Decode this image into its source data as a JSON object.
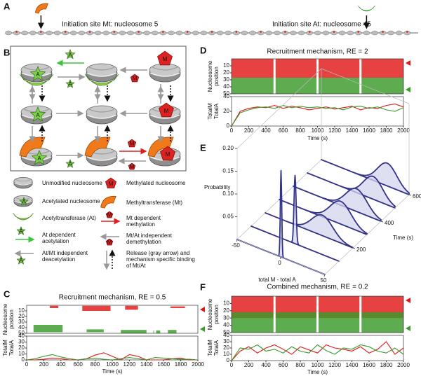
{
  "diagram_a": {
    "panel": "A",
    "site_mt": "Initiation site Mt: nucleosome 5",
    "site_at": "Initiation site At: nucleosome 45"
  },
  "diagram_b": {
    "panel": "B",
    "acetyl_mark": "A",
    "methyl_mark": "M",
    "legend": [
      [
        "Unmodified nucleosome"
      ],
      [
        "Acetylated nucleosome"
      ],
      [
        "Acetyltransferase (At)"
      ],
      [
        "At dependent",
        "acetylation"
      ],
      [
        "At/Mt independent",
        "deacetylation"
      ],
      [
        "Methylated nucleosome"
      ],
      [
        "Methyltransferase (Mt)"
      ],
      [
        "Mt dependent",
        "methylation"
      ],
      [
        "Mt/At independent",
        "demethylation"
      ],
      [
        "Release (gray arrow) and",
        "mechanism specific binding",
        "of Mt/At"
      ]
    ]
  },
  "chart_data": [
    {
      "panel": "C",
      "type": "timecourse",
      "title": "Recruitment mechanism, RE = 0.5",
      "x_label": "Time (s)",
      "xlim": [
        0,
        2000
      ],
      "xticks": [
        0,
        200,
        400,
        600,
        800,
        1000,
        1200,
        1400,
        1600,
        1800,
        2000
      ],
      "top": {
        "y_label": [
          "Nucleosome",
          "position"
        ],
        "ylim": [
          50,
          0
        ],
        "yticks": [
          10,
          20,
          30,
          40,
          50
        ],
        "patches": [
          {
            "color": "#e01818",
            "x": [
              270,
              370
            ],
            "y": [
              1,
              5
            ]
          },
          {
            "color": "#e01818",
            "x": [
              650,
              980
            ],
            "y": [
              1,
              10
            ]
          },
          {
            "color": "#e01818",
            "x": [
              1150,
              1300
            ],
            "y": [
              1,
              8
            ]
          },
          {
            "color": "#e01818",
            "x": [
              1680,
              1850
            ],
            "y": [
              2,
              5
            ]
          },
          {
            "color": "#3a9a2a",
            "x": [
              80,
              420
            ],
            "y": [
              35,
              48
            ]
          },
          {
            "color": "#3a9a2a",
            "x": [
              700,
              900
            ],
            "y": [
              43,
              48
            ]
          },
          {
            "color": "#3a9a2a",
            "x": [
              1100,
              1400
            ],
            "y": [
              44,
              50
            ]
          },
          {
            "color": "#3a9a2a",
            "x": [
              1480,
              1560
            ],
            "y": [
              45,
              50
            ]
          },
          {
            "color": "#3a9a2a",
            "x": [
              1650,
              1750
            ],
            "y": [
              44,
              50
            ]
          }
        ]
      },
      "bottom": {
        "y_label": [
          "TotalM",
          "TotalA"
        ],
        "ylim": [
          0,
          40
        ],
        "yticks": [
          0,
          10,
          20,
          30,
          40
        ],
        "x": [
          0,
          100,
          200,
          300,
          400,
          500,
          600,
          700,
          800,
          900,
          1000,
          1100,
          1200,
          1300,
          1400,
          1500,
          1600,
          1700,
          1800,
          1900,
          2000
        ],
        "series": [
          {
            "color": "#e01818",
            "values": [
              0,
              0,
              1,
              3,
              2,
              0,
              0,
              2,
              8,
              12,
              6,
              0,
              9,
              6,
              0,
              0,
              0,
              2,
              3,
              0,
              0
            ]
          },
          {
            "color": "#3a9a2a",
            "values": [
              0,
              2,
              6,
              9,
              5,
              2,
              0,
              2,
              3,
              1,
              0,
              2,
              4,
              2,
              0,
              4,
              3,
              2,
              1,
              1,
              0
            ]
          }
        ]
      }
    },
    {
      "panel": "D",
      "type": "timecourse",
      "title": "Recruitment mechanism, RE = 2",
      "x_label": "Time (s)",
      "xlim": [
        0,
        2000
      ],
      "xticks": [
        0,
        200,
        400,
        600,
        800,
        1000,
        1200,
        1400,
        1600,
        1800,
        2000
      ],
      "top": {
        "y_label": [
          "Nucleosome",
          "position"
        ],
        "ylim": [
          50,
          0
        ],
        "yticks": [
          10,
          20,
          30,
          40,
          50
        ],
        "patches": [
          {
            "color": "#e01818",
            "x": [
              0,
              2000
            ],
            "y": [
              0,
              27
            ]
          },
          {
            "color": "#3a9a2a",
            "x": [
              0,
              2000
            ],
            "y": [
              27,
              50
            ]
          }
        ]
      },
      "bottom": {
        "y_label": [
          "TotalM",
          "TotalA"
        ],
        "ylim": [
          0,
          40
        ],
        "yticks": [
          0,
          20,
          40
        ],
        "x": [
          0,
          100,
          200,
          300,
          400,
          500,
          600,
          700,
          800,
          900,
          1000,
          1100,
          1200,
          1300,
          1400,
          1500,
          1600,
          1700,
          1800,
          1900,
          2000
        ],
        "series": [
          {
            "color": "#e01818",
            "values": [
              0,
              20,
              24,
              26,
              25,
              28,
              24,
              27,
              25,
              22,
              24,
              26,
              23,
              25,
              27,
              22,
              25,
              24,
              28,
              30,
              26
            ]
          },
          {
            "color": "#3a9a2a",
            "values": [
              0,
              18,
              22,
              25,
              26,
              24,
              28,
              25,
              27,
              25,
              26,
              24,
              25,
              22,
              26,
              27,
              24,
              26,
              22,
              20,
              25
            ]
          }
        ]
      }
    },
    {
      "panel": "E",
      "type": "waterfall",
      "x_label": "total M - total A",
      "y_label": "Probability",
      "z_label": "Time (s)",
      "xlim": [
        -50,
        50
      ],
      "xticks": [
        -50,
        0,
        50
      ],
      "ylim": [
        0,
        0.2
      ],
      "yticks": [
        0.05,
        {
          "value": 0.1,
          "label": "0.10"
        },
        0.15,
        {
          "value": 0.2,
          "label": "0.20"
        }
      ],
      "zlim": [
        0,
        600
      ],
      "zticks": [
        200,
        400,
        600
      ],
      "curves": [
        {
          "time": 0,
          "mean": 0,
          "peak": 0.19,
          "sd": 0.8
        },
        {
          "time": 100,
          "mean": 0,
          "peak": 0.15,
          "sd": 1.2
        },
        {
          "time": 200,
          "mean": 15,
          "peak": 0.045,
          "sd": 12
        },
        {
          "time": 300,
          "mean": 20,
          "peak": 0.05,
          "sd": 12
        },
        {
          "time": 400,
          "mean": 22,
          "peak": 0.05,
          "sd": 12
        },
        {
          "time": 500,
          "mean": 25,
          "peak": 0.05,
          "sd": 11
        },
        {
          "time": 600,
          "mean": 25,
          "peak": 0.05,
          "sd": 11
        }
      ]
    },
    {
      "panel": "F",
      "type": "timecourse",
      "title": "Combined mechanism, RE = 0.2",
      "x_label": "Time (s)",
      "xlim": [
        0,
        2000
      ],
      "xticks": [
        0,
        200,
        400,
        600,
        800,
        1000,
        1200,
        1400,
        1600,
        1800,
        2000
      ],
      "top": {
        "y_label": [
          "Nucleosome",
          "position"
        ],
        "ylim": [
          50,
          0
        ],
        "yticks": [
          10,
          20,
          30,
          40,
          50
        ],
        "patches": [
          {
            "color": "#e01818",
            "x": [
              0,
              2000
            ],
            "y": [
              0,
              30
            ]
          },
          {
            "color": "#3a9a2a",
            "x": [
              0,
              2000
            ],
            "y": [
              22,
              50
            ]
          }
        ]
      },
      "bottom": {
        "y_label": [
          "TotalM",
          "TotalA"
        ],
        "ylim": [
          0,
          40
        ],
        "yticks": [
          0,
          10,
          20,
          30,
          40
        ],
        "x": [
          0,
          100,
          200,
          300,
          400,
          500,
          600,
          700,
          800,
          900,
          1000,
          1100,
          1200,
          1300,
          1400,
          1500,
          1600,
          1700,
          1800,
          1900,
          2000
        ],
        "series": [
          {
            "color": "#e01818",
            "values": [
              0,
              15,
              22,
              12,
              20,
              25,
              18,
              10,
              22,
              17,
              12,
              25,
              20,
              18,
              15,
              22,
              12,
              18,
              30,
              10,
              20
            ]
          },
          {
            "color": "#3a9a2a",
            "values": [
              0,
              20,
              18,
              25,
              15,
              18,
              12,
              22,
              15,
              12,
              25,
              16,
              10,
              20,
              18,
              25,
              22,
              15,
              12,
              20,
              10
            ]
          }
        ]
      }
    }
  ]
}
